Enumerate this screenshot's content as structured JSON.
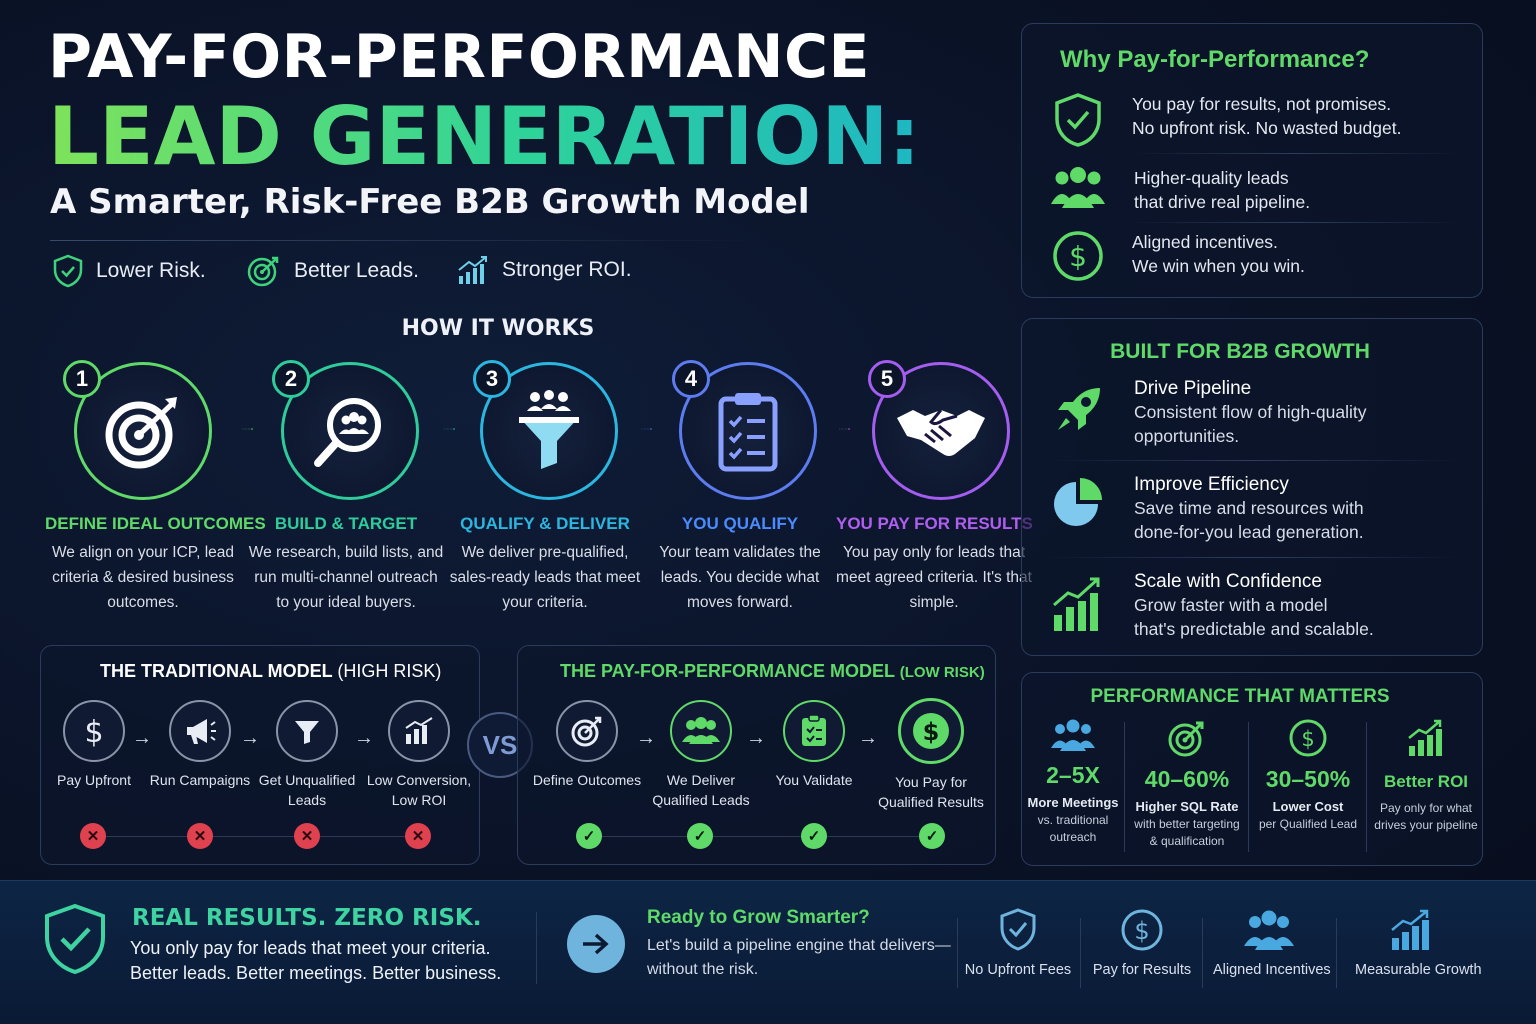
{
  "header": {
    "title_line1": "PAY-FOR-PERFORMANCE",
    "title_line2": "LEAD GENERATION:",
    "subtitle": "A Smarter, Risk-Free B2B Growth Model",
    "benefits": [
      {
        "icon": "shield-check-icon",
        "label": "Lower Risk."
      },
      {
        "icon": "target-icon",
        "label": "Better Leads."
      },
      {
        "icon": "growth-chart-icon",
        "label": "Stronger ROI."
      }
    ]
  },
  "how_it_works": {
    "title": "HOW IT WORKS",
    "steps": [
      {
        "num": "1",
        "title": "DEFINE IDEAL OUTCOMES",
        "desc": "We align on your ICP, lead criteria & desired business outcomes.",
        "icon": "target-icon",
        "color": "#5fd968"
      },
      {
        "num": "2",
        "title": "BUILD & TARGET",
        "desc": "We research, build lists, and run multi-channel outreach to your ideal buyers.",
        "icon": "search-people-icon",
        "color": "#2ecc9a"
      },
      {
        "num": "3",
        "title": "QUALIFY & DELIVER",
        "desc": "We deliver pre-qualified, sales-ready leads that meet your criteria.",
        "icon": "funnel-icon",
        "color": "#2bb6e0"
      },
      {
        "num": "4",
        "title": "YOU QUALIFY",
        "desc": "Your team validates the leads. You decide what moves forward.",
        "icon": "clipboard-icon",
        "color": "#5d7cf0"
      },
      {
        "num": "5",
        "title": "YOU PAY FOR RESULTS",
        "desc": "You pay only for leads that meet agreed criteria. It's that simple.",
        "icon": "handshake-icon",
        "color": "#a35ef0"
      }
    ]
  },
  "traditional": {
    "title": "THE TRADITIONAL MODEL",
    "risk": "(HIGH RISK)",
    "items": [
      {
        "label": "Pay Upfront",
        "icon": "dollar-icon"
      },
      {
        "label": "Run Campaigns",
        "icon": "megaphone-icon"
      },
      {
        "label": "Get Unqualified Leads",
        "icon": "funnel-icon"
      },
      {
        "label": "Low Conversion, Low ROI",
        "icon": "bar-chart-icon"
      }
    ]
  },
  "vs_label": "VS",
  "pfp_model": {
    "title": "THE PAY-FOR-PERFORMANCE MODEL",
    "risk": "(LOW RISK)",
    "items": [
      {
        "label": "Define Outcomes",
        "icon": "target-icon"
      },
      {
        "label": "We Deliver Qualified Leads",
        "icon": "people-icon"
      },
      {
        "label": "You Validate",
        "icon": "clipboard-icon"
      },
      {
        "label": "You Pay for Qualified Results",
        "icon": "dollar-icon"
      }
    ]
  },
  "why": {
    "title": "Why Pay-for-Performance?",
    "items": [
      {
        "line1": "You pay for results, not promises.",
        "line2": "No upfront risk. No wasted budget.",
        "icon": "shield-check-icon"
      },
      {
        "line1": "Higher-quality leads",
        "line2": "that drive real pipeline.",
        "icon": "people-icon"
      },
      {
        "line1": "Aligned incentives.",
        "line2": "We win when you win.",
        "icon": "dollar-icon"
      }
    ]
  },
  "built": {
    "title": "BUILT FOR B2B GROWTH",
    "items": [
      {
        "title": "Drive Pipeline",
        "desc1": "Consistent flow of high-quality",
        "desc2": "opportunities.",
        "icon": "rocket-icon"
      },
      {
        "title": "Improve Efficiency",
        "desc1": "Save time and resources with",
        "desc2": "done-for-you lead generation.",
        "icon": "pie-chart-icon"
      },
      {
        "title": "Scale with Confidence",
        "desc1": "Grow faster with a model",
        "desc2": "that's predictable and scalable.",
        "icon": "growth-chart-icon"
      }
    ]
  },
  "performance": {
    "title": "PERFORMANCE THAT MATTERS",
    "metrics": [
      {
        "value": "2–5X",
        "label": "More Meetings",
        "sub": "vs. traditional outreach",
        "icon": "people-icon"
      },
      {
        "value": "40–60%",
        "label": "Higher SQL Rate",
        "sub": "with better targeting & qualification",
        "icon": "target-icon"
      },
      {
        "value": "30–50%",
        "label": "Lower Cost",
        "sub": "per Qualified Lead",
        "icon": "dollar-icon"
      },
      {
        "value": "Better ROI",
        "label": "",
        "sub": "Pay only for what drives your pipeline",
        "icon": "growth-chart-icon"
      }
    ]
  },
  "footer": {
    "headline": "REAL RESULTS. ZERO RISK.",
    "line1": "You only pay for leads that meet your criteria.",
    "line2": "Better leads. Better meetings. Better business.",
    "cta_title": "Ready to Grow Smarter?",
    "cta_line1": "Let's build a pipeline engine that delivers—",
    "cta_line2": "without the risk.",
    "badges": [
      {
        "label": "No Upfront Fees",
        "icon": "shield-check-icon"
      },
      {
        "label": "Pay for Results",
        "icon": "dollar-icon"
      },
      {
        "label": "Aligned Incentives",
        "icon": "people-icon"
      },
      {
        "label": "Measurable Growth",
        "icon": "growth-chart-icon"
      }
    ]
  },
  "colors": {
    "green": "#5fd968",
    "teal": "#2ecc9a",
    "blue": "#2bb6e0",
    "indigo": "#5d7cf0",
    "purple": "#a35ef0",
    "red": "#e0414f"
  }
}
